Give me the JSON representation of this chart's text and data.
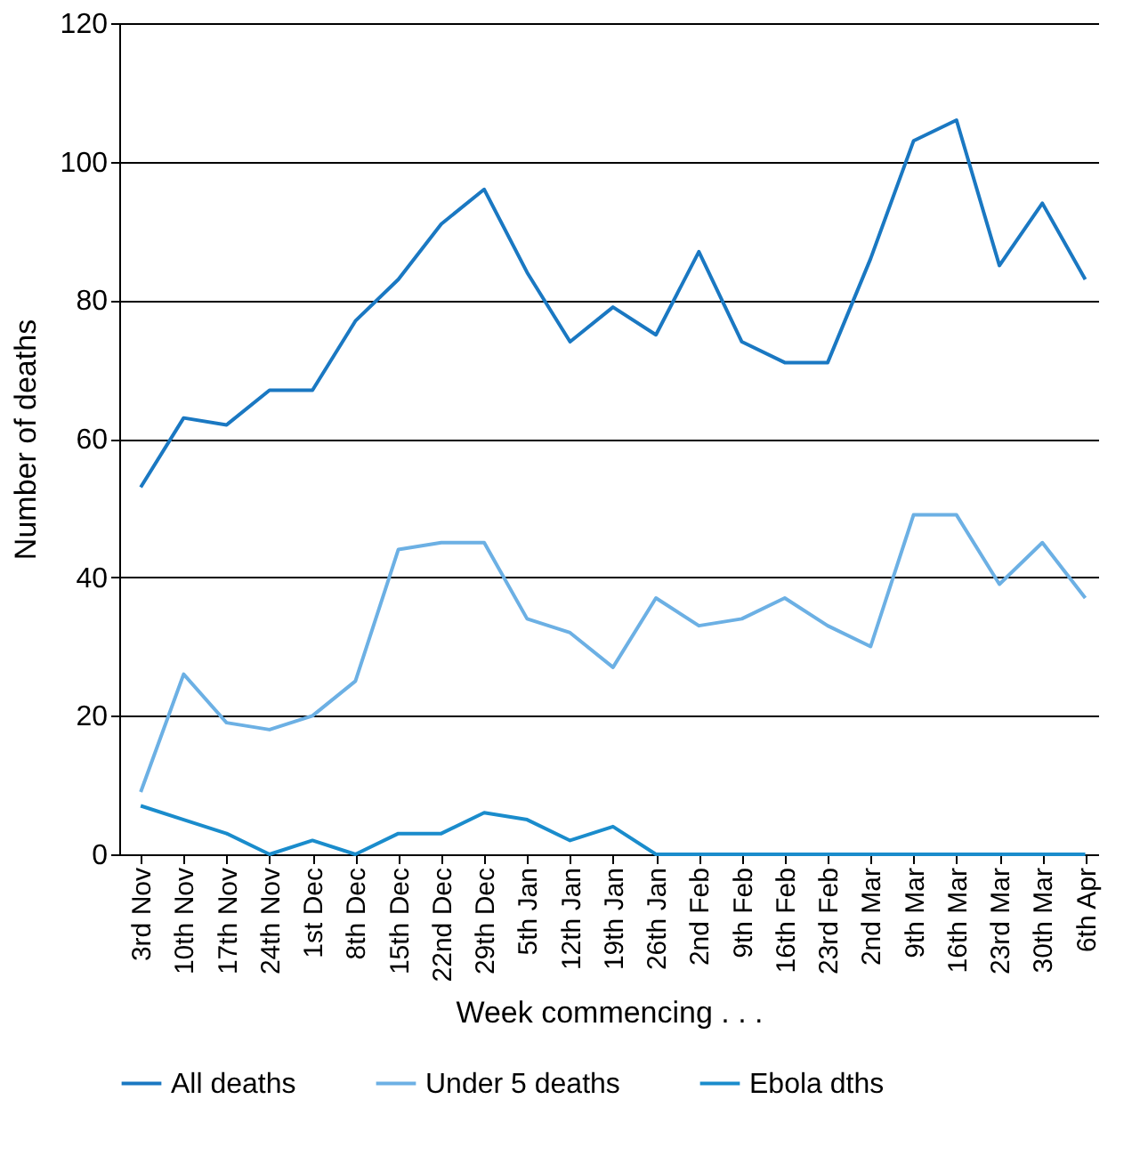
{
  "chart_data": {
    "type": "line",
    "xlabel": "Week commencing . . .",
    "ylabel": "Number of deaths",
    "categories": [
      "3rd Nov",
      "10th Nov",
      "17th Nov",
      "24th Nov",
      "1st Dec",
      "8th Dec",
      "15th Dec",
      "22nd Dec",
      "29th Dec",
      "5th Jan",
      "12th Jan",
      "19th Jan",
      "26th Jan",
      "2nd Feb",
      "9th Feb",
      "16th Feb",
      "23rd Feb",
      "2nd Mar",
      "9th Mar",
      "16th Mar",
      "23rd Mar",
      "30th Mar",
      "6th Apr"
    ],
    "series": [
      {
        "name": "All deaths",
        "color": "#1a78c2",
        "values": [
          53,
          63,
          62,
          67,
          67,
          77,
          83,
          91,
          96,
          84,
          74,
          79,
          75,
          87,
          74,
          71,
          71,
          86,
          103,
          106,
          85,
          94,
          83
        ]
      },
      {
        "name": "Under 5 deaths",
        "color": "#6cb0e4",
        "values": [
          9,
          26,
          19,
          18,
          20,
          25,
          44,
          45,
          45,
          34,
          32,
          27,
          37,
          33,
          34,
          37,
          33,
          30,
          49,
          49,
          39,
          45,
          37
        ]
      },
      {
        "name": "Ebola dths",
        "color": "#1a8ccc",
        "values": [
          7,
          5,
          3,
          0,
          2,
          0,
          3,
          3,
          6,
          5,
          2,
          4,
          0,
          0,
          0,
          0,
          0,
          0,
          0,
          0,
          0,
          0,
          0
        ]
      }
    ],
    "ylim": [
      0,
      120
    ],
    "yticks": [
      0,
      20,
      40,
      60,
      80,
      100,
      120
    ],
    "grid": "y",
    "legend": "bottom",
    "marker": "none",
    "line_style": "solid"
  }
}
